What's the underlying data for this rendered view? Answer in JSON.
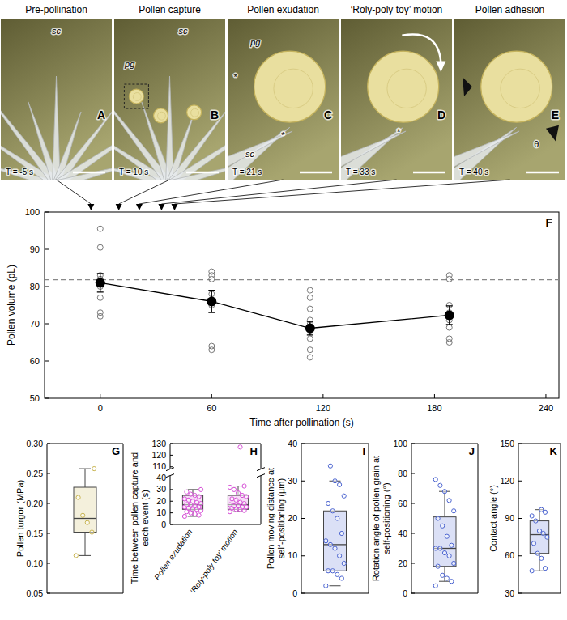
{
  "photo_panels": [
    {
      "letter": "A",
      "title": "Pre-pollination",
      "time_label": "T = -5 s",
      "labels": [
        "sc"
      ]
    },
    {
      "letter": "B",
      "title": "Pollen capture",
      "time_label": "T = 10 s",
      "labels": [
        "sc",
        "pg"
      ]
    },
    {
      "letter": "C",
      "title": "Pollen exudation",
      "time_label": "T = 21 s",
      "labels": [
        "pg",
        "sc",
        "*",
        "*"
      ]
    },
    {
      "letter": "D",
      "title": "‘Roly-poly toy’ motion",
      "time_label": "T = 33 s",
      "labels": [
        "*"
      ]
    },
    {
      "letter": "E",
      "title": "Pollen adhesion",
      "time_label": "T = 40 s",
      "labels": [
        "θ"
      ]
    }
  ],
  "chart_data": [
    {
      "type": "line",
      "panel_label": "F",
      "xlabel": "Time after pollination (s)",
      "ylabel": "Pollen volume (pL)",
      "xlim": [
        -30,
        247
      ],
      "xticks": [
        0,
        60,
        120,
        180,
        240
      ],
      "ylim": [
        50,
        100
      ],
      "yticks": [
        50,
        60,
        70,
        80,
        90,
        100
      ],
      "x": [
        0,
        60,
        113,
        188
      ],
      "values": [
        81,
        76,
        68.8,
        72.3
      ],
      "errors": [
        2.5,
        3,
        1.8,
        2.5
      ],
      "points": [
        [
          95.5,
          90.5,
          83,
          82,
          80,
          77,
          73,
          72
        ],
        [
          84,
          83,
          82,
          78,
          75,
          64,
          63
        ],
        [
          79,
          77,
          74,
          71,
          70,
          68,
          66,
          63,
          61
        ],
        [
          83,
          82,
          75,
          73,
          71,
          69,
          66,
          65
        ]
      ],
      "reference_line": 81.8,
      "event_times": [
        -5,
        10,
        21,
        33,
        40
      ],
      "color": "#000000"
    },
    {
      "type": "box",
      "panel_label": "G",
      "ylabel": "Pollen turgor (MPa)",
      "ylim": [
        0.05,
        0.3
      ],
      "yticks": [
        0.05,
        {
          "value": 0.1,
          "label": "0.10"
        },
        0.15,
        {
          "value": 0.2,
          "label": "0.20"
        },
        0.25,
        {
          "value": 0.3,
          "label": "0.30"
        }
      ],
      "color": "#c8b450",
      "boxes": [
        {
          "min": 0.113,
          "q1": 0.152,
          "median": 0.175,
          "q3": 0.227,
          "max": 0.258,
          "points": [
            0.113,
            0.152,
            0.168,
            0.18,
            0.21,
            0.258
          ]
        }
      ]
    },
    {
      "type": "box",
      "panel_label": "H",
      "ylabel": "Time between pollen capture and each event (s)",
      "categories": [
        "Pollen exudation",
        "‘Roly-poly toy’ motion"
      ],
      "ylim": [
        0,
        130
      ],
      "axis_break": [
        42,
        108
      ],
      "yticks": [
        0,
        10,
        20,
        30,
        40,
        110,
        120,
        130
      ],
      "color": "#d64fd6",
      "boxes": [
        {
          "min": 7,
          "q1": 13,
          "median": 17,
          "q3": 25,
          "max": 30,
          "points": [
            7,
            8,
            9,
            10,
            11,
            12,
            13,
            13,
            14,
            15,
            15,
            16,
            17,
            17,
            18,
            19,
            20,
            21,
            22,
            24,
            25,
            26,
            28,
            30
          ]
        },
        {
          "min": 11,
          "q1": 13,
          "median": 17,
          "q3": 25,
          "max": 33,
          "points": [
            11,
            12,
            13,
            13,
            14,
            15,
            15,
            16,
            16,
            17,
            18,
            19,
            21,
            22,
            24,
            25,
            27,
            30,
            32,
            33,
            127
          ]
        }
      ]
    },
    {
      "type": "box",
      "panel_label": "I",
      "ylabel": "Pollen moving distance at self-positioning (µm)",
      "ylim": [
        0,
        40
      ],
      "yticks": [
        0,
        10,
        20,
        30,
        40
      ],
      "color": "#4a63d0",
      "boxes": [
        {
          "min": 2,
          "q1": 6,
          "median": 13,
          "q3": 22,
          "max": 30,
          "points": [
            2,
            4,
            5,
            6,
            6,
            8,
            10,
            12,
            13,
            14,
            16,
            20,
            22,
            24,
            26,
            29,
            30,
            34
          ]
        }
      ]
    },
    {
      "type": "box",
      "panel_label": "J",
      "ylabel": "Rotation angle of pollen grain at self-positioning (°)",
      "ylim": [
        0,
        100
      ],
      "yticks": [
        0,
        20,
        40,
        60,
        80,
        100
      ],
      "color": "#4a63d0",
      "boxes": [
        {
          "min": 8,
          "q1": 18,
          "median": 30,
          "q3": 51,
          "max": 68,
          "points": [
            5,
            8,
            10,
            12,
            18,
            20,
            25,
            27,
            30,
            30,
            32,
            38,
            45,
            50,
            55,
            62,
            68,
            72,
            76
          ]
        }
      ]
    },
    {
      "type": "box",
      "panel_label": "K",
      "ylabel": "Contact angle (°)",
      "ylim": [
        30,
        150
      ],
      "yticks": [
        30,
        60,
        90,
        120,
        150
      ],
      "color": "#4a63d0",
      "boxes": [
        {
          "min": 48,
          "q1": 62,
          "median": 77,
          "q3": 88,
          "max": 97,
          "points": [
            48,
            50,
            58,
            62,
            70,
            75,
            78,
            80,
            88,
            92,
            95,
            97
          ]
        }
      ]
    }
  ]
}
